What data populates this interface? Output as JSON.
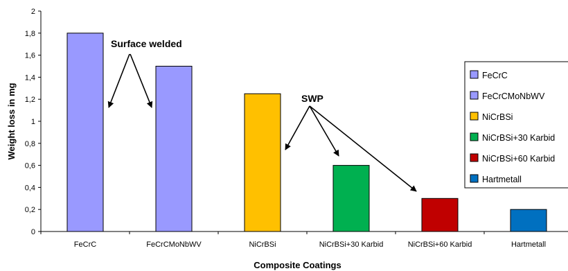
{
  "chart_data": {
    "type": "bar",
    "categories": [
      "FeCrC",
      "FeCrCMoNbWV",
      "NiCrBSi",
      "NiCrBSi+30 Karbid",
      "NiCrBSi+60 Karbid",
      "Hartmetall"
    ],
    "values": [
      1.8,
      1.5,
      1.25,
      0.6,
      0.3,
      0.2
    ],
    "colors": [
      "#9999ff",
      "#9999ff",
      "#ffc000",
      "#00b050",
      "#c00000",
      "#0070c0"
    ],
    "xlabel": "Composite Coatings",
    "ylabel": "Weight loss in mg",
    "ylim": [
      0,
      2
    ],
    "yticks": [
      0,
      0.2,
      0.4,
      0.6,
      0.8,
      1,
      1.2,
      1.4,
      1.6,
      1.8,
      2
    ],
    "ytick_labels": [
      "0",
      "0,2",
      "0,4",
      "0,6",
      "0,8",
      "1",
      "1,2",
      "1,4",
      "1,6",
      "1,8",
      "2"
    ],
    "grid": false,
    "legend": {
      "placement": "right",
      "entries": [
        {
          "label": "FeCrC",
          "color": "#9999ff"
        },
        {
          "label": "FeCrCMoNbWV",
          "color": "#9999ff"
        },
        {
          "label": "NiCrBSi",
          "color": "#ffc000"
        },
        {
          "label": "NiCrBSi+30 Karbid",
          "color": "#00b050"
        },
        {
          "label": "NiCrBSi+60 Karbid",
          "color": "#c00000"
        },
        {
          "label": "Hartmetall",
          "color": "#0070c0"
        }
      ]
    },
    "annotations": [
      {
        "text": "Surface welded",
        "points_to": [
          "FeCrC",
          "FeCrCMoNbWV"
        ]
      },
      {
        "text": "SWP",
        "points_to": [
          "NiCrBSi",
          "NiCrBSi+30 Karbid",
          "NiCrBSi+60 Karbid"
        ]
      }
    ]
  }
}
